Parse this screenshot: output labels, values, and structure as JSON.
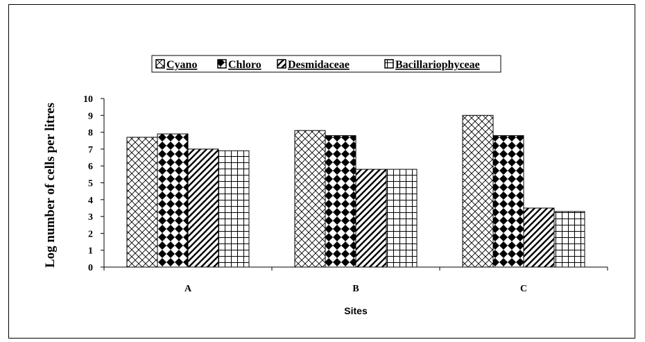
{
  "chart_data": {
    "type": "bar",
    "categories": [
      "A",
      "B",
      "C"
    ],
    "series": [
      {
        "name": "Cyano",
        "values": [
          7.7,
          8.1,
          9.0
        ],
        "pattern": "crosshatch"
      },
      {
        "name": "Chloro",
        "values": [
          7.9,
          7.8,
          7.8
        ],
        "pattern": "diamond"
      },
      {
        "name": "Desmidaceae",
        "values": [
          7.0,
          5.8,
          3.5
        ],
        "pattern": "diagonal"
      },
      {
        "name": "Bacillariophyceae",
        "values": [
          6.9,
          5.8,
          3.3
        ],
        "pattern": "grid"
      }
    ],
    "xlabel": "Sites",
    "ylabel": "Log number of cells per litres",
    "ylim": [
      0,
      10
    ],
    "yticks": [
      "0",
      "1",
      "2",
      "3",
      "4",
      "5",
      "6",
      "7",
      "8",
      "9",
      "10"
    ],
    "grid": false,
    "legend_position": "top-center",
    "colors": {
      "ink": "#000000",
      "fill": "#ffffff"
    }
  }
}
